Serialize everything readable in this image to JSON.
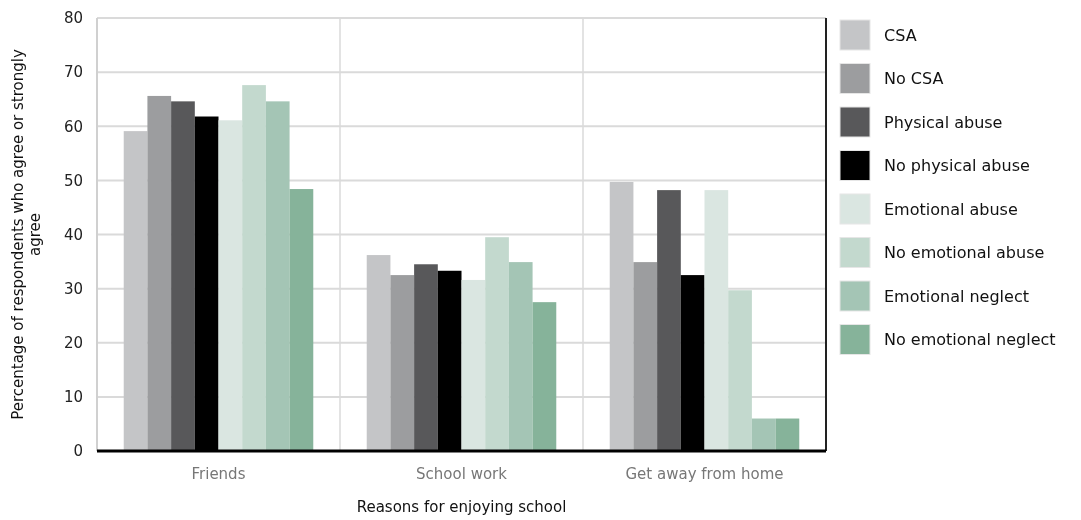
{
  "chart_data": {
    "type": "bar",
    "xlabel": "Reasons for enjoying school",
    "ylabel": "Percentage of respondents who agree or strongly agree",
    "categories": [
      "Friends",
      "School work",
      "Get away from home"
    ],
    "series": [
      {
        "name": "CSA",
        "color": "#c4c5c7",
        "values": [
          59.1,
          36.2,
          49.7
        ]
      },
      {
        "name": "No CSA",
        "color": "#9c9d9f",
        "values": [
          65.6,
          32.5,
          34.9
        ]
      },
      {
        "name": "Physical abuse",
        "color": "#58585a",
        "values": [
          64.6,
          34.5,
          48.2
        ]
      },
      {
        "name": "No physical abuse",
        "color": "#000000",
        "values": [
          61.8,
          33.3,
          32.5
        ]
      },
      {
        "name": "Emotional abuse",
        "color": "#dae6e1",
        "values": [
          61.1,
          31.6,
          48.2
        ]
      },
      {
        "name": "No emotional abuse",
        "color": "#c3d9ce",
        "values": [
          67.6,
          39.5,
          29.7
        ]
      },
      {
        "name": "Emotional neglect",
        "color": "#a4c5b5",
        "values": [
          64.6,
          34.9,
          6.0
        ]
      },
      {
        "name": "No emotional neglect",
        "color": "#86b39a",
        "values": [
          48.4,
          27.5,
          6.0
        ]
      }
    ],
    "ylim": [
      0,
      80
    ],
    "yticks": [
      0,
      10,
      20,
      30,
      40,
      50,
      60,
      70,
      80
    ],
    "grid": true,
    "legend": "right"
  }
}
